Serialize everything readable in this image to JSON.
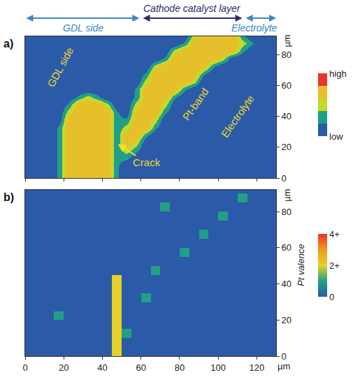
{
  "header": {
    "title": "Cathode catalyst layer",
    "left": "GDL side",
    "right": "Electrolyte"
  },
  "chart_data": [
    {
      "type": "heatmap",
      "panel_label": "a)",
      "y_label": "µm",
      "tick_labels": "y",
      "xlim": [
        0,
        130
      ],
      "ylim": [
        0,
        92
      ],
      "xticks": [
        0,
        20,
        40,
        60,
        80,
        100,
        120
      ],
      "yticks": [
        0,
        20,
        40,
        60,
        80
      ],
      "x": [
        2.5,
        7.5,
        12.5,
        17.5,
        22.5,
        27.5,
        32.5,
        37.5,
        42.5,
        47.5,
        52.5,
        57.5,
        62.5,
        67.5,
        72.5,
        77.5,
        82.5,
        87.5,
        92.5,
        97.5,
        102.5,
        107.5,
        112.5,
        117.5,
        122.5,
        127.5
      ],
      "y": [
        2.5,
        7.5,
        12.5,
        17.5,
        22.5,
        27.5,
        32.5,
        37.5,
        42.5,
        47.5,
        52.5,
        57.5,
        62.5,
        67.5,
        72.5,
        77.5,
        82.5,
        87.5,
        92.5
      ],
      "z": [
        [
          0,
          0,
          0,
          1,
          3,
          3,
          3,
          3,
          3,
          1,
          0,
          0,
          0,
          0,
          0,
          0,
          0,
          0,
          0,
          0,
          0,
          0,
          0,
          0,
          0,
          0
        ],
        [
          0,
          0,
          0,
          1,
          3,
          3,
          3,
          3,
          3,
          1,
          0,
          0,
          0,
          0,
          0,
          0,
          0,
          0,
          0,
          0,
          0,
          0,
          0,
          0,
          0,
          0
        ],
        [
          0,
          0,
          0,
          1,
          3,
          3,
          3,
          3,
          3,
          1,
          1,
          0,
          0,
          0,
          0,
          0,
          0,
          0,
          0,
          0,
          0,
          0,
          0,
          0,
          0,
          0
        ],
        [
          0,
          0,
          0,
          1,
          3,
          3,
          3,
          3,
          3,
          1,
          2,
          1,
          0,
          0,
          0,
          0,
          0,
          0,
          0,
          0,
          0,
          0,
          0,
          0,
          0,
          0
        ],
        [
          0,
          0,
          0,
          1,
          3,
          3,
          3,
          3,
          3,
          1,
          3,
          2,
          0,
          0,
          0,
          0,
          0,
          0,
          0,
          0,
          0,
          0,
          0,
          0,
          0,
          0
        ],
        [
          0,
          0,
          0,
          1,
          3,
          3,
          3,
          3,
          3,
          1,
          3,
          3,
          1,
          0,
          0,
          0,
          0,
          0,
          0,
          0,
          0,
          0,
          0,
          0,
          0,
          0
        ],
        [
          0,
          0,
          0,
          1,
          3,
          3,
          3,
          3,
          3,
          1,
          2,
          3,
          3,
          1,
          0,
          0,
          0,
          0,
          0,
          0,
          0,
          0,
          0,
          0,
          0,
          0
        ],
        [
          0,
          0,
          0,
          0,
          3,
          3,
          3,
          3,
          3,
          1,
          1,
          3,
          3,
          2,
          0,
          0,
          0,
          0,
          0,
          0,
          0,
          0,
          0,
          0,
          0,
          0
        ],
        [
          0,
          0,
          0,
          0,
          2,
          3,
          3,
          3,
          3,
          1,
          0,
          3,
          3,
          3,
          1,
          0,
          0,
          0,
          0,
          0,
          0,
          0,
          0,
          0,
          0,
          0
        ],
        [
          0,
          0,
          0,
          0,
          1,
          3,
          3,
          3,
          2,
          0,
          0,
          2,
          3,
          3,
          2,
          0,
          0,
          0,
          0,
          0,
          0,
          0,
          0,
          0,
          0,
          0
        ],
        [
          0,
          0,
          0,
          0,
          0,
          1,
          2,
          1,
          0,
          0,
          0,
          1,
          3,
          3,
          3,
          1,
          0,
          0,
          0,
          0,
          0,
          0,
          0,
          0,
          0,
          0
        ],
        [
          0,
          0,
          0,
          0,
          0,
          0,
          0,
          0,
          0,
          0,
          0,
          1,
          3,
          3,
          3,
          3,
          1,
          0,
          0,
          0,
          0,
          0,
          0,
          0,
          0,
          0
        ],
        [
          0,
          0,
          0,
          0,
          0,
          0,
          0,
          0,
          0,
          0,
          0,
          0,
          2,
          3,
          3,
          3,
          3,
          2,
          0,
          0,
          0,
          0,
          0,
          0,
          0,
          0
        ],
        [
          0,
          0,
          0,
          0,
          0,
          0,
          0,
          0,
          0,
          0,
          0,
          0,
          1,
          3,
          3,
          3,
          3,
          3,
          1,
          0,
          0,
          0,
          0,
          0,
          0,
          0
        ],
        [
          0,
          0,
          0,
          0,
          0,
          0,
          0,
          0,
          0,
          0,
          0,
          0,
          0,
          2,
          3,
          3,
          3,
          3,
          3,
          1,
          0,
          0,
          0,
          0,
          0,
          0
        ],
        [
          0,
          0,
          0,
          0,
          0,
          0,
          0,
          0,
          0,
          0,
          0,
          0,
          0,
          0,
          1,
          3,
          3,
          3,
          3,
          3,
          2,
          0,
          0,
          0,
          0,
          0
        ],
        [
          0,
          0,
          0,
          0,
          0,
          0,
          0,
          0,
          0,
          0,
          0,
          0,
          0,
          0,
          0,
          2,
          3,
          3,
          3,
          3,
          3,
          3,
          1,
          0,
          0,
          0
        ],
        [
          0,
          0,
          0,
          0,
          0,
          0,
          0,
          0,
          0,
          0,
          0,
          0,
          0,
          0,
          0,
          0,
          1,
          3,
          3,
          3,
          3,
          3,
          2,
          1,
          0,
          0
        ],
        [
          0,
          0,
          0,
          0,
          0,
          0,
          0,
          0,
          0,
          0,
          0,
          0,
          0,
          0,
          0,
          0,
          0,
          2,
          3,
          3,
          3,
          3,
          1,
          0,
          0,
          0
        ]
      ],
      "colorbar": {
        "range": [
          0,
          4
        ],
        "ticks": [
          {
            "value": 4,
            "label": "high"
          },
          {
            "value": 0,
            "label": "low"
          }
        ]
      },
      "annotations": [
        {
          "text": "GDL side",
          "x": 18,
          "y": 72
        },
        {
          "text": "Pt-band",
          "x": 88,
          "y": 48
        },
        {
          "text": "Electrolyte",
          "x": 110,
          "y": 40
        },
        {
          "text": "Crack",
          "x": 63,
          "y": 10,
          "arrow_x": 48,
          "arrow_y": 22
        }
      ]
    },
    {
      "type": "heatmap",
      "panel_label": "b)",
      "x_label": "µm",
      "y_label": "µm",
      "tick_labels": true,
      "xlim": [
        0,
        130
      ],
      "ylim": [
        0,
        92
      ],
      "xticks": [
        0,
        20,
        40,
        60,
        80,
        100,
        120
      ],
      "yticks": [
        0,
        20,
        40,
        60,
        80
      ],
      "x": [
        2.5,
        7.5,
        12.5,
        17.5,
        22.5,
        27.5,
        32.5,
        37.5,
        42.5,
        47.5,
        52.5,
        57.5,
        62.5,
        67.5,
        72.5,
        77.5,
        82.5,
        87.5,
        92.5,
        97.5,
        102.5,
        107.5,
        112.5,
        117.5,
        122.5,
        127.5
      ],
      "y": [
        2.5,
        7.5,
        12.5,
        17.5,
        22.5,
        27.5,
        32.5,
        37.5,
        42.5,
        47.5,
        52.5,
        57.5,
        62.5,
        67.5,
        72.5,
        77.5,
        82.5,
        87.5,
        92.5
      ],
      "z": [
        [
          0,
          0,
          0,
          0,
          0,
          0,
          0,
          0,
          0,
          2,
          0,
          0,
          0,
          0,
          0,
          0,
          0,
          0,
          0,
          0,
          0,
          0,
          0,
          0,
          0,
          0
        ],
        [
          0,
          0,
          0,
          0,
          0,
          0,
          0,
          0,
          0,
          2,
          0,
          0,
          0,
          0,
          0,
          0,
          0,
          0,
          0,
          0,
          0,
          0,
          0,
          0,
          0,
          0
        ],
        [
          0,
          0,
          0,
          0,
          0,
          0,
          0,
          0,
          0,
          2,
          1,
          0,
          0,
          0,
          0,
          0,
          0,
          0,
          0,
          0,
          0,
          0,
          0,
          0,
          0,
          0
        ],
        [
          0,
          0,
          0,
          0,
          0,
          0,
          0,
          0,
          0,
          2,
          0,
          0,
          0,
          0,
          0,
          0,
          0,
          0,
          0,
          0,
          0,
          0,
          0,
          0,
          0,
          0
        ],
        [
          0,
          0,
          0,
          1,
          0,
          0,
          0,
          0,
          0,
          2,
          0,
          0,
          0,
          0,
          0,
          0,
          0,
          0,
          0,
          0,
          0,
          0,
          0,
          0,
          0,
          0
        ],
        [
          0,
          0,
          0,
          0,
          0,
          0,
          0,
          0,
          0,
          2,
          0,
          0,
          0,
          0,
          0,
          0,
          0,
          0,
          0,
          0,
          0,
          0,
          0,
          0,
          0,
          0
        ],
        [
          0,
          0,
          0,
          0,
          0,
          0,
          0,
          0,
          0,
          2,
          0,
          0,
          1,
          0,
          0,
          0,
          0,
          0,
          0,
          0,
          0,
          0,
          0,
          0,
          0,
          0
        ],
        [
          0,
          0,
          0,
          0,
          0,
          0,
          0,
          0,
          0,
          2,
          0,
          0,
          0,
          0,
          0,
          0,
          0,
          0,
          0,
          0,
          0,
          0,
          0,
          0,
          0,
          0
        ],
        [
          0,
          0,
          0,
          0,
          0,
          0,
          0,
          0,
          0,
          2,
          0,
          0,
          0,
          0,
          0,
          0,
          0,
          0,
          0,
          0,
          0,
          0,
          0,
          0,
          0,
          0
        ],
        [
          0,
          0,
          0,
          0,
          0,
          0,
          0,
          0,
          0,
          0,
          0,
          0,
          0,
          1,
          0,
          0,
          0,
          0,
          0,
          0,
          0,
          0,
          0,
          0,
          0,
          0
        ],
        [
          0,
          0,
          0,
          0,
          0,
          0,
          0,
          0,
          0,
          0,
          0,
          0,
          0,
          0,
          0,
          0,
          0,
          0,
          0,
          0,
          0,
          0,
          0,
          0,
          0,
          0
        ],
        [
          0,
          0,
          0,
          0,
          0,
          0,
          0,
          0,
          0,
          0,
          0,
          0,
          0,
          0,
          0,
          0,
          1,
          0,
          0,
          0,
          0,
          0,
          0,
          0,
          0,
          0
        ],
        [
          0,
          0,
          0,
          0,
          0,
          0,
          0,
          0,
          0,
          0,
          0,
          0,
          0,
          0,
          0,
          0,
          0,
          0,
          0,
          0,
          0,
          0,
          0,
          0,
          0,
          0
        ],
        [
          0,
          0,
          0,
          0,
          0,
          0,
          0,
          0,
          0,
          0,
          0,
          0,
          0,
          0,
          0,
          0,
          0,
          0,
          1,
          0,
          0,
          0,
          0,
          0,
          0,
          0
        ],
        [
          0,
          0,
          0,
          0,
          0,
          0,
          0,
          0,
          0,
          0,
          0,
          0,
          0,
          0,
          0,
          0,
          0,
          0,
          0,
          0,
          0,
          0,
          0,
          0,
          0,
          0
        ],
        [
          0,
          0,
          0,
          0,
          0,
          0,
          0,
          0,
          0,
          0,
          0,
          0,
          0,
          0,
          0,
          0,
          0,
          0,
          0,
          0,
          1,
          0,
          0,
          0,
          0,
          0
        ],
        [
          0,
          0,
          0,
          0,
          0,
          0,
          0,
          0,
          0,
          0,
          0,
          0,
          0,
          0,
          1,
          0,
          0,
          0,
          0,
          0,
          0,
          0,
          0,
          0,
          0,
          0
        ],
        [
          0,
          0,
          0,
          0,
          0,
          0,
          0,
          0,
          0,
          0,
          0,
          0,
          0,
          0,
          0,
          0,
          0,
          0,
          0,
          0,
          0,
          0,
          1,
          0,
          0,
          0
        ],
        [
          0,
          0,
          0,
          0,
          0,
          0,
          0,
          0,
          0,
          0,
          0,
          0,
          0,
          0,
          0,
          0,
          0,
          0,
          0,
          0,
          0,
          0,
          0,
          0,
          0,
          0
        ]
      ],
      "colorbar": {
        "title": "Pt valence",
        "range": [
          0,
          4
        ],
        "ticks": [
          0,
          {
            "value": 2,
            "label": "2+"
          },
          {
            "value": 4,
            "label": "4+"
          }
        ]
      }
    }
  ]
}
